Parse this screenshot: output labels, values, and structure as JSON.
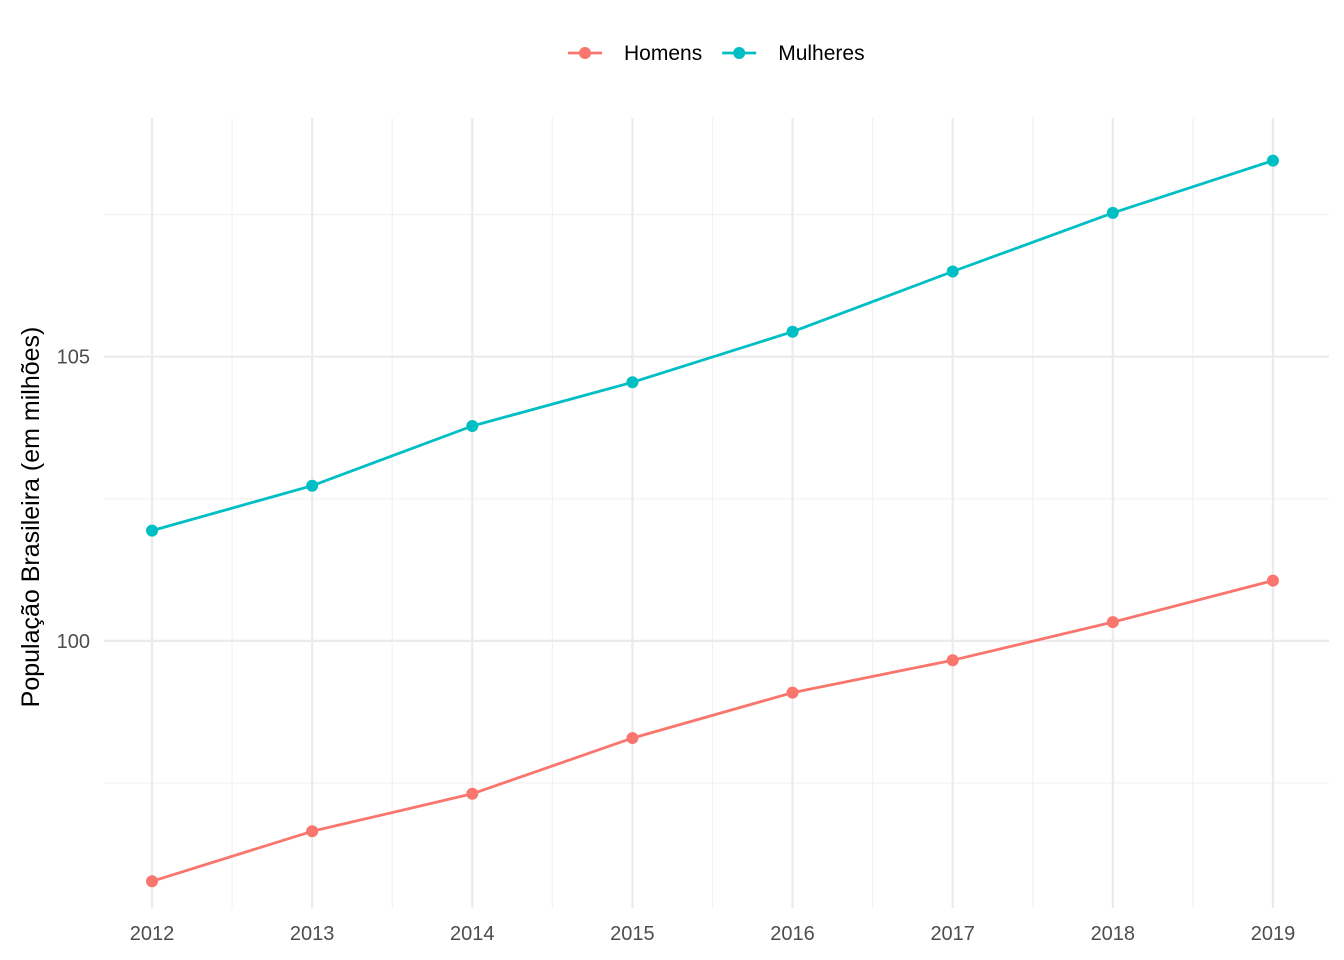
{
  "chart_data": {
    "type": "line",
    "title": "",
    "xlabel": "",
    "ylabel": "População Brasileira (em milhões)",
    "x": [
      2012,
      2013,
      2014,
      2015,
      2016,
      2017,
      2018,
      2019
    ],
    "xlim": [
      2011.7,
      2019.35
    ],
    "ylim": [
      95.3,
      109.2
    ],
    "y_ticks": [
      100,
      105
    ],
    "y_minor_ticks": [
      97.5,
      102.5,
      107.5
    ],
    "x_minor_ticks": [
      2012.5,
      2013.5,
      2014.5,
      2015.5,
      2016.5,
      2017.5,
      2018.5
    ],
    "grid": true,
    "legend_position": "top",
    "series": [
      {
        "name": "Homens",
        "color": "#F8766D",
        "values": [
          95.77,
          96.65,
          97.31,
          98.29,
          99.09,
          99.66,
          100.33,
          101.06
        ]
      },
      {
        "name": "Mulheres",
        "color": "#00BFC4",
        "values": [
          101.94,
          102.73,
          103.78,
          104.55,
          105.44,
          106.5,
          107.53,
          108.45
        ]
      }
    ]
  }
}
